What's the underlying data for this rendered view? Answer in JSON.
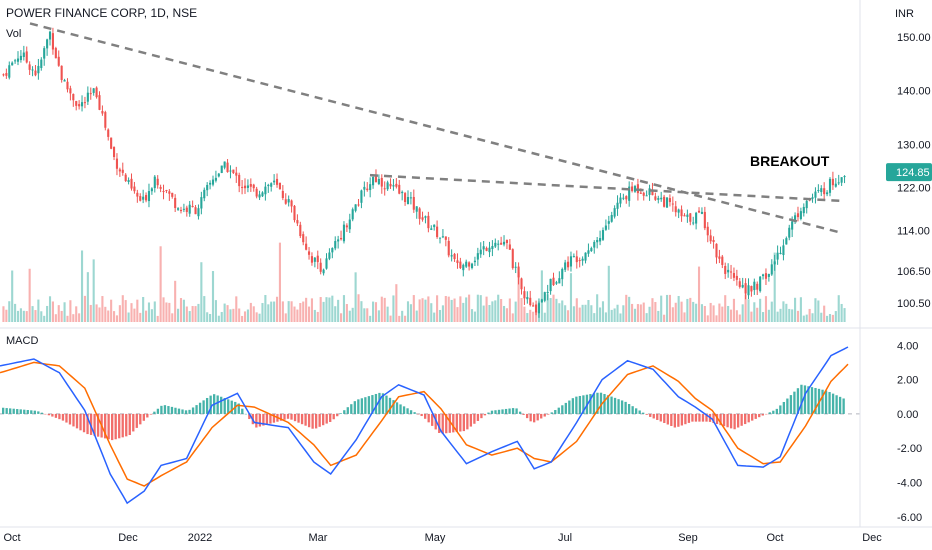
{
  "header": {
    "title": "POWER FINANCE CORP, 1D, NSE",
    "volume_label": "Vol",
    "macd_label": "MACD",
    "unit": "INR"
  },
  "annotation": {
    "label": "BREAKOUT"
  },
  "chart_data": [
    {
      "type": "candlestick",
      "title": "POWER FINANCE CORP, 1D, NSE",
      "ylabel": "INR",
      "ylim": [
        97,
        155
      ],
      "y_ticks": [
        100.5,
        106.5,
        114.0,
        122.0,
        130.0,
        140.0,
        150.0
      ],
      "y_tick_labels": [
        "100.50",
        "106.50",
        "114.00",
        "122.00",
        "130.00",
        "140.00",
        "150.00"
      ],
      "x_labels": [
        "Oct",
        "Dec",
        "2022",
        "Mar",
        "May",
        "Jul",
        "Sep",
        "Oct",
        "Dec"
      ],
      "last_price": "124.85",
      "colors": {
        "up": "#26a69a",
        "down": "#ef5350",
        "last_price_bg": "#26a69a",
        "trendline": "#808080"
      },
      "close_path": [
        [
          0,
          143
        ],
        [
          0.02,
          147
        ],
        [
          0.04,
          143
        ],
        [
          0.055,
          151
        ],
        [
          0.07,
          142
        ],
        [
          0.09,
          137
        ],
        [
          0.11,
          140
        ],
        [
          0.13,
          128
        ],
        [
          0.15,
          122
        ],
        [
          0.165,
          119
        ],
        [
          0.18,
          124
        ],
        [
          0.195,
          121
        ],
        [
          0.21,
          118
        ],
        [
          0.23,
          118
        ],
        [
          0.25,
          124
        ],
        [
          0.265,
          126
        ],
        [
          0.28,
          123
        ],
        [
          0.3,
          121
        ],
        [
          0.32,
          123
        ],
        [
          0.34,
          119
        ],
        [
          0.365,
          109
        ],
        [
          0.38,
          107
        ],
        [
          0.4,
          113
        ],
        [
          0.42,
          119
        ],
        [
          0.44,
          124
        ],
        [
          0.46,
          122
        ],
        [
          0.48,
          120
        ],
        [
          0.5,
          116
        ],
        [
          0.52,
          113
        ],
        [
          0.54,
          107
        ],
        [
          0.56,
          109
        ],
        [
          0.58,
          112
        ],
        [
          0.6,
          111
        ],
        [
          0.615,
          103
        ],
        [
          0.63,
          99
        ],
        [
          0.65,
          104
        ],
        [
          0.67,
          108
        ],
        [
          0.69,
          110
        ],
        [
          0.71,
          113
        ],
        [
          0.73,
          119
        ],
        [
          0.75,
          122
        ],
        [
          0.77,
          121
        ],
        [
          0.79,
          119
        ],
        [
          0.81,
          116
        ],
        [
          0.83,
          117
        ],
        [
          0.85,
          109
        ],
        [
          0.87,
          104
        ],
        [
          0.89,
          103
        ],
        [
          0.91,
          106
        ],
        [
          0.93,
          113
        ],
        [
          0.95,
          119
        ],
        [
          0.97,
          121
        ],
        [
          1.0,
          124.85
        ]
      ],
      "trendlines": [
        {
          "from": [
            "Oct",
            152
          ],
          "to": [
            "Nov-end",
            114
          ]
        },
        {
          "from": [
            "Mar",
            124
          ],
          "to": [
            "Nov-end",
            120
          ]
        }
      ],
      "annotations": [
        "BREAKOUT"
      ]
    },
    {
      "type": "bar",
      "title": "Vol",
      "note": "volume histogram, green on up days / red on down days"
    },
    {
      "type": "line",
      "title": "MACD",
      "ylim": [
        -6.3,
        4.6
      ],
      "y_ticks": [
        4.0,
        2.0,
        0.0,
        -2.0,
        -4.0,
        -6.0
      ],
      "y_tick_labels": [
        "4.00",
        "2.00",
        "0.00",
        "-2.00",
        "-4.00",
        "-6.00"
      ],
      "colors": {
        "macd": "#2962ff",
        "signal": "#ff6d00",
        "hist_up": "#26a69a",
        "hist_down": "#ef5350",
        "zero": "#b2b5be"
      },
      "macd_path": [
        [
          0,
          2.8
        ],
        [
          0.04,
          3.2
        ],
        [
          0.07,
          2.4
        ],
        [
          0.1,
          0.2
        ],
        [
          0.13,
          -3.5
        ],
        [
          0.15,
          -5.2
        ],
        [
          0.17,
          -4.5
        ],
        [
          0.19,
          -3.0
        ],
        [
          0.22,
          -2.6
        ],
        [
          0.25,
          0.5
        ],
        [
          0.28,
          1.2
        ],
        [
          0.3,
          -0.5
        ],
        [
          0.34,
          -0.8
        ],
        [
          0.37,
          -2.8
        ],
        [
          0.39,
          -3.5
        ],
        [
          0.42,
          -1.5
        ],
        [
          0.45,
          1.0
        ],
        [
          0.47,
          1.7
        ],
        [
          0.5,
          1.1
        ],
        [
          0.52,
          -1.0
        ],
        [
          0.55,
          -2.9
        ],
        [
          0.58,
          -2.2
        ],
        [
          0.61,
          -1.6
        ],
        [
          0.63,
          -3.2
        ],
        [
          0.65,
          -2.8
        ],
        [
          0.68,
          -0.5
        ],
        [
          0.71,
          2.0
        ],
        [
          0.74,
          3.1
        ],
        [
          0.77,
          2.6
        ],
        [
          0.8,
          1.0
        ],
        [
          0.82,
          0.4
        ],
        [
          0.84,
          -0.3
        ],
        [
          0.87,
          -3.0
        ],
        [
          0.9,
          -3.1
        ],
        [
          0.92,
          -2.5
        ],
        [
          0.95,
          1.2
        ],
        [
          0.98,
          3.4
        ],
        [
          1.0,
          3.9
        ]
      ],
      "signal_path": [
        [
          0,
          2.4
        ],
        [
          0.04,
          3.0
        ],
        [
          0.07,
          2.8
        ],
        [
          0.1,
          1.5
        ],
        [
          0.13,
          -1.8
        ],
        [
          0.15,
          -3.8
        ],
        [
          0.17,
          -4.2
        ],
        [
          0.19,
          -3.6
        ],
        [
          0.22,
          -2.8
        ],
        [
          0.25,
          -0.8
        ],
        [
          0.28,
          0.5
        ],
        [
          0.3,
          0.4
        ],
        [
          0.34,
          -0.5
        ],
        [
          0.37,
          -1.8
        ],
        [
          0.39,
          -3.0
        ],
        [
          0.42,
          -2.4
        ],
        [
          0.45,
          -0.4
        ],
        [
          0.47,
          1.0
        ],
        [
          0.5,
          1.3
        ],
        [
          0.52,
          0.3
        ],
        [
          0.55,
          -1.8
        ],
        [
          0.58,
          -2.4
        ],
        [
          0.61,
          -2.0
        ],
        [
          0.63,
          -2.6
        ],
        [
          0.65,
          -2.8
        ],
        [
          0.68,
          -1.6
        ],
        [
          0.71,
          0.6
        ],
        [
          0.74,
          2.3
        ],
        [
          0.77,
          2.8
        ],
        [
          0.8,
          1.9
        ],
        [
          0.82,
          0.9
        ],
        [
          0.84,
          0.2
        ],
        [
          0.87,
          -2.0
        ],
        [
          0.9,
          -2.9
        ],
        [
          0.92,
          -2.8
        ],
        [
          0.95,
          -0.7
        ],
        [
          0.98,
          1.9
        ],
        [
          1.0,
          2.9
        ]
      ]
    }
  ]
}
